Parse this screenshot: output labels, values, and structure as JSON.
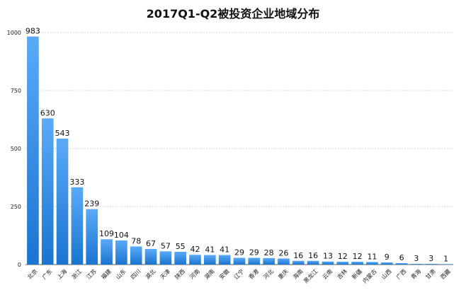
{
  "chart_data": {
    "type": "bar",
    "title": "2017Q1-Q2被投资企业地域分布",
    "xlabel": "",
    "ylabel": "",
    "ylim": [
      0,
      1000
    ],
    "yticks": [
      0,
      250,
      500,
      750,
      1000
    ],
    "grid": true,
    "categories": [
      "北京",
      "广东",
      "上海",
      "浙江",
      "江苏",
      "福建",
      "山东",
      "四川",
      "湖北",
      "天津",
      "陕西",
      "河南",
      "湖南",
      "安徽",
      "辽宁",
      "香港",
      "河北",
      "重庆",
      "海南",
      "黑龙江",
      "云南",
      "吉林",
      "新疆",
      "内蒙古",
      "山西",
      "广西",
      "青海",
      "甘肃",
      "西藏"
    ],
    "values": [
      983,
      630,
      543,
      333,
      239,
      109,
      104,
      78,
      67,
      57,
      55,
      42,
      41,
      41,
      29,
      29,
      28,
      26,
      16,
      16,
      13,
      12,
      12,
      11,
      9,
      6,
      3,
      3,
      1
    ],
    "bar_color_top": "#5aaaf7",
    "bar_color_bottom": "#1a74d0"
  }
}
